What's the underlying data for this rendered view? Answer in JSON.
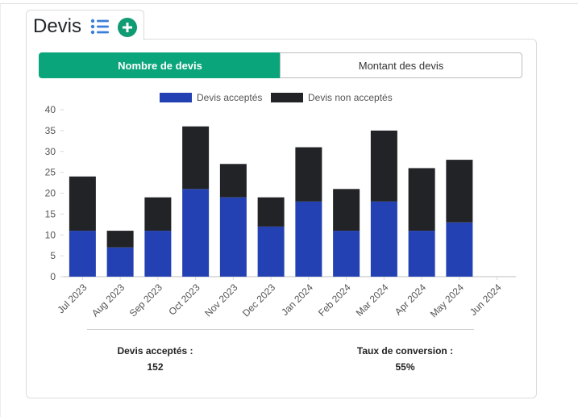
{
  "panel": {
    "title": "Devis"
  },
  "toggle": {
    "count_label": "Nombre de devis",
    "amount_label": "Montant des devis"
  },
  "colors": {
    "accent": "#0aa57b",
    "accepted": "#2341b3",
    "not_accepted": "#222326"
  },
  "chart_data": {
    "type": "bar",
    "stacked": true,
    "categories": [
      "Jul 2023",
      "Aug 2023",
      "Sep 2023",
      "Oct 2023",
      "Nov 2023",
      "Dec 2023",
      "Jan 2024",
      "Feb 2024",
      "Mar 2024",
      "Apr 2024",
      "May 2024",
      "Jun 2024"
    ],
    "series": [
      {
        "name": "Devis acceptés",
        "color": "#2341b3",
        "values": [
          11,
          7,
          11,
          21,
          19,
          12,
          18,
          11,
          18,
          11,
          13,
          0
        ]
      },
      {
        "name": "Devis non acceptés",
        "color": "#222326",
        "values": [
          13,
          4,
          8,
          15,
          8,
          7,
          13,
          10,
          17,
          15,
          15,
          0
        ]
      }
    ],
    "ylim": [
      0,
      40
    ],
    "yticks": [
      0,
      5,
      10,
      15,
      20,
      25,
      30,
      35,
      40
    ],
    "legend": "top-center"
  },
  "stats": {
    "accepted_label": "Devis acceptés :",
    "accepted_value": "152",
    "conversion_label": "Taux de conversion :",
    "conversion_value": "55%"
  }
}
